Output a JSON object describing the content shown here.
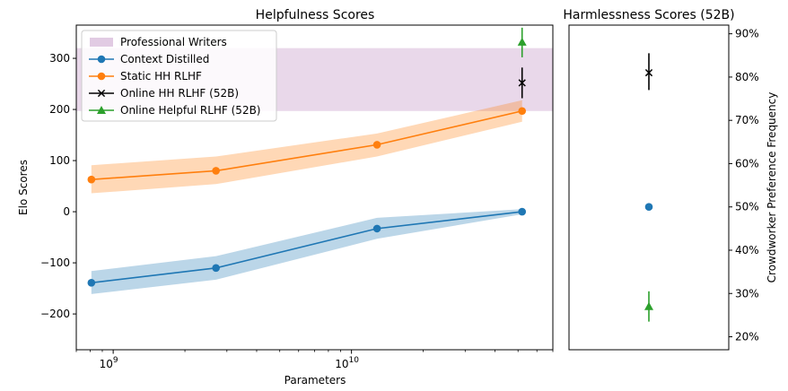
{
  "charts": [
    {
      "title": "Helpfulness Scores",
      "xlabel": "Parameters",
      "ylabel": "Elo Scores",
      "yticks": [
        {
          "v": 300,
          "label": "300"
        },
        {
          "v": 200,
          "label": "200"
        },
        {
          "v": 100,
          "label": "100"
        },
        {
          "v": 0,
          "label": "0"
        },
        {
          "v": -100,
          "label": "−100"
        },
        {
          "v": -200,
          "label": "−200"
        }
      ],
      "xticks": [
        {
          "v": 1000000000,
          "base": "10",
          "exp": "9"
        },
        {
          "v": 10000000000,
          "base": "10",
          "exp": "10"
        }
      ]
    },
    {
      "title": "Harmlessness Scores (52B)",
      "ylabel": "Crowdworker Preference Frequency",
      "yticks": [
        "90%",
        "80%",
        "70%",
        "60%",
        "50%",
        "40%",
        "30%",
        "20%"
      ]
    }
  ],
  "legend": [
    {
      "label": "Professional Writers",
      "kind": "band",
      "color": "#e1cbe3"
    },
    {
      "label": "Context Distilled",
      "kind": "circle",
      "color": "#1f77b4"
    },
    {
      "label": "Static HH RLHF",
      "kind": "circle",
      "color": "#ff7f0e"
    },
    {
      "label": "Online HH RLHF (52B)",
      "kind": "x",
      "color": "#000000"
    },
    {
      "label": "Online Helpful RLHF (52B)",
      "kind": "triangle",
      "color": "#2ca02c"
    }
  ],
  "chart_data": [
    {
      "type": "line",
      "title": "Helpfulness Scores",
      "xlabel": "Parameters",
      "ylabel": "Elo Scores",
      "xscale": "log",
      "xlim": [
        700000000,
        70000000000
      ],
      "ylim": [
        -270,
        365
      ],
      "grid": false,
      "legend_position": "top-left",
      "band": {
        "name": "Professional Writers",
        "y_range": [
          197,
          320
        ],
        "color": "#e1cbe3"
      },
      "series": [
        {
          "name": "Context Distilled",
          "color": "#1f77b4",
          "marker": "circle",
          "x": [
            810000000,
            2700000000,
            12800000000,
            52000000000
          ],
          "y": [
            -139,
            -110,
            -33,
            0
          ],
          "y_lower": [
            -161,
            -133,
            -53,
            -5
          ],
          "y_upper": [
            -116,
            -87,
            -12,
            5
          ]
        },
        {
          "name": "Static HH RLHF",
          "color": "#ff7f0e",
          "marker": "circle",
          "x": [
            810000000,
            2700000000,
            12800000000,
            52000000000
          ],
          "y": [
            63,
            80,
            131,
            197
          ],
          "y_lower": [
            36,
            54,
            108,
            176
          ],
          "y_upper": [
            91,
            108,
            153,
            218
          ]
        },
        {
          "name": "Online HH RLHF (52B)",
          "color": "#000000",
          "marker": "x",
          "x": [
            52000000000
          ],
          "y": [
            252
          ],
          "y_lower": [
            222
          ],
          "y_upper": [
            282
          ]
        },
        {
          "name": "Online Helpful RLHF (52B)",
          "color": "#2ca02c",
          "marker": "triangle",
          "x": [
            52000000000
          ],
          "y": [
            332
          ],
          "y_lower": [
            302
          ],
          "y_upper": [
            360
          ]
        }
      ]
    },
    {
      "type": "scatter",
      "title": "Harmlessness Scores (52B)",
      "ylabel": "Crowdworker Preference Frequency",
      "ylim": [
        0.17,
        0.92
      ],
      "grid": false,
      "series": [
        {
          "name": "Online HH RLHF (52B)",
          "color": "#000000",
          "marker": "x",
          "y": 0.81,
          "y_lower": 0.77,
          "y_upper": 0.855
        },
        {
          "name": "Context Distilled",
          "color": "#1f77b4",
          "marker": "circle",
          "y": 0.5
        },
        {
          "name": "Online Helpful RLHF (52B)",
          "color": "#2ca02c",
          "marker": "triangle",
          "y": 0.27,
          "y_lower": 0.235,
          "y_upper": 0.305
        }
      ]
    }
  ]
}
